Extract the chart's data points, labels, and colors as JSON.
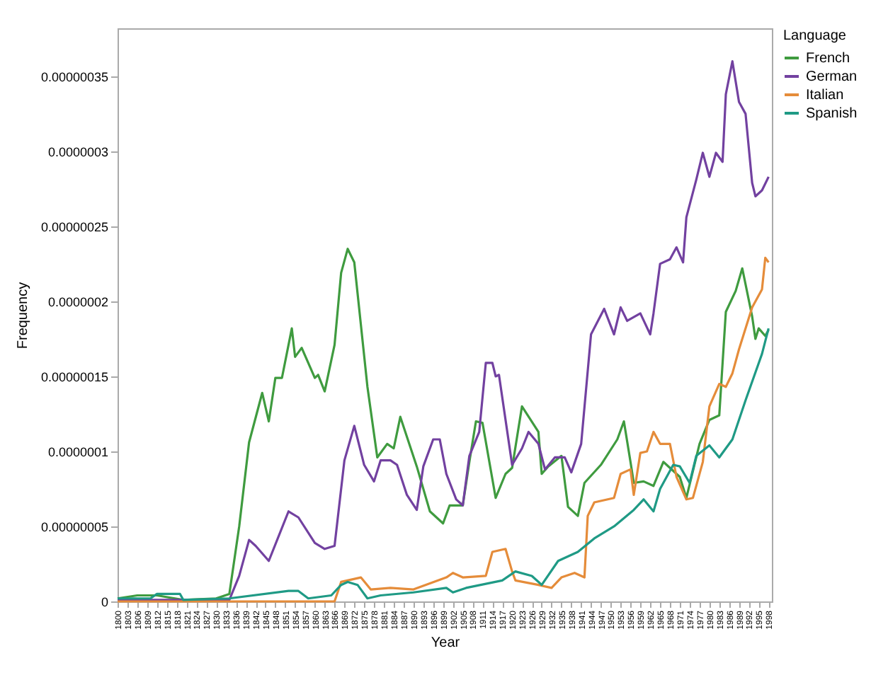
{
  "chart_data": {
    "type": "line",
    "xlabel": "Year",
    "ylabel": "Frequency",
    "legend_title": "Language",
    "legend": "right",
    "grid": false,
    "xlim": [
      1800,
      1999
    ],
    "xticks": [
      1800,
      1803,
      1806,
      1809,
      1812,
      1815,
      1818,
      1821,
      1824,
      1827,
      1830,
      1833,
      1836,
      1839,
      1842,
      1845,
      1848,
      1851,
      1854,
      1857,
      1860,
      1863,
      1866,
      1869,
      1872,
      1875,
      1878,
      1881,
      1884,
      1887,
      1890,
      1893,
      1896,
      1899,
      1902,
      1905,
      1908,
      1911,
      1914,
      1917,
      1920,
      1923,
      1926,
      1929,
      1932,
      1935,
      1938,
      1941,
      1944,
      1947,
      1950,
      1953,
      1956,
      1959,
      1962,
      1965,
      1968,
      1971,
      1974,
      1977,
      1980,
      1983,
      1986,
      1989,
      1992,
      1995,
      1998
    ],
    "ylim": [
      0,
      3.82e-07
    ],
    "yticks": [
      0,
      {
        "value": 5e-08,
        "label": "0.00000005"
      },
      {
        "value": 1e-07,
        "label": "0.0000001"
      },
      {
        "value": 1.5e-07,
        "label": "0.00000015"
      },
      {
        "value": 2e-07,
        "label": "0.0000002"
      },
      {
        "value": 2.5e-07,
        "label": "0.00000025"
      },
      {
        "value": 3e-07,
        "label": "0.0000003"
      },
      {
        "value": 3.5e-07,
        "label": "0.00000035"
      }
    ],
    "series": [
      {
        "name": "French",
        "color": "#3f9b3f",
        "x": [
          1800,
          1806,
          1812,
          1820,
          1830,
          1834,
          1837,
          1840,
          1844,
          1846,
          1848,
          1850,
          1853,
          1854,
          1856,
          1860,
          1861,
          1863,
          1866,
          1868,
          1870,
          1872,
          1876,
          1879,
          1882,
          1884,
          1886,
          1891,
          1895,
          1899,
          1901,
          1905,
          1907,
          1909,
          1911,
          1915,
          1918,
          1920,
          1923,
          1928,
          1929,
          1931,
          1935,
          1937,
          1940,
          1942,
          1947,
          1952,
          1954,
          1956,
          1957,
          1960,
          1963,
          1966,
          1971,
          1973,
          1977,
          1980,
          1983,
          1985,
          1988,
          1990,
          1993,
          1994,
          1995,
          1997,
          1998
        ],
        "values": [
          2e-09,
          4e-09,
          4e-09,
          1e-09,
          2e-09,
          5e-09,
          5e-08,
          1.06e-07,
          1.39e-07,
          1.2e-07,
          1.49e-07,
          1.49e-07,
          1.82e-07,
          1.63e-07,
          1.69e-07,
          1.49e-07,
          1.51e-07,
          1.4e-07,
          1.71e-07,
          2.19e-07,
          2.35e-07,
          2.26e-07,
          1.43e-07,
          9.6e-08,
          1.05e-07,
          1.02e-07,
          1.23e-07,
          9e-08,
          6e-08,
          5.2e-08,
          6.4e-08,
          6.4e-08,
          9.3e-08,
          1.2e-07,
          1.19e-07,
          6.9e-08,
          8.5e-08,
          8.9e-08,
          1.3e-07,
          1.13e-07,
          8.5e-08,
          9e-08,
          9.7e-08,
          6.3e-08,
          5.7e-08,
          7.9e-08,
          9.1e-08,
          1.08e-07,
          1.2e-07,
          9.3e-08,
          7.9e-08,
          8e-08,
          7.7e-08,
          9.3e-08,
          8.3e-08,
          6.9e-08,
          1.05e-07,
          1.21e-07,
          1.24e-07,
          1.93e-07,
          2.07e-07,
          2.22e-07,
          1.9e-07,
          1.75e-07,
          1.82e-07,
          1.77e-07,
          1.81e-07
        ]
      },
      {
        "name": "German",
        "color": "#7241a0",
        "x": [
          1800,
          1834,
          1837,
          1840,
          1842,
          1846,
          1852,
          1855,
          1860,
          1863,
          1866,
          1869,
          1872,
          1875,
          1878,
          1880,
          1883,
          1885,
          1888,
          1891,
          1893,
          1896,
          1898,
          1900,
          1903,
          1905,
          1907,
          1910,
          1912,
          1914,
          1915,
          1916,
          1920,
          1923,
          1925,
          1928,
          1930,
          1933,
          1936,
          1938,
          1941,
          1944,
          1948,
          1951,
          1953,
          1955,
          1959,
          1962,
          1963,
          1965,
          1968,
          1970,
          1972,
          1973,
          1976,
          1978,
          1980,
          1982,
          1984,
          1985,
          1987,
          1989,
          1991,
          1993,
          1994,
          1996,
          1998
        ],
        "values": [
          1e-09,
          1e-09,
          1.7e-08,
          4.1e-08,
          3.7e-08,
          2.7e-08,
          6e-08,
          5.6e-08,
          3.9e-08,
          3.5e-08,
          3.7e-08,
          9.4e-08,
          1.17e-07,
          9.1e-08,
          8e-08,
          9.4e-08,
          9.4e-08,
          9.1e-08,
          7.1e-08,
          6.1e-08,
          9e-08,
          1.08e-07,
          1.08e-07,
          8.5e-08,
          6.8e-08,
          6.4e-08,
          9.7e-08,
          1.13e-07,
          1.59e-07,
          1.59e-07,
          1.5e-07,
          1.51e-07,
          9.1e-08,
          1.02e-07,
          1.13e-07,
          1.05e-07,
          8.8e-08,
          9.6e-08,
          9.6e-08,
          8.6e-08,
          1.05e-07,
          1.78e-07,
          1.95e-07,
          1.78e-07,
          1.96e-07,
          1.87e-07,
          1.92e-07,
          1.78e-07,
          1.92e-07,
          2.25e-07,
          2.28e-07,
          2.36e-07,
          2.26e-07,
          2.56e-07,
          2.81e-07,
          2.99e-07,
          2.83e-07,
          2.99e-07,
          2.93e-07,
          3.38e-07,
          3.6e-07,
          3.33e-07,
          3.25e-07,
          2.79e-07,
          2.7e-07,
          2.74e-07,
          2.83e-07
        ]
      },
      {
        "name": "Italian",
        "color": "#e58c3a",
        "x": [
          1800,
          1866,
          1868,
          1874,
          1877,
          1883,
          1890,
          1900,
          1902,
          1905,
          1912,
          1914,
          1918,
          1920,
          1921,
          1928,
          1932,
          1935,
          1939,
          1942,
          1943,
          1945,
          1951,
          1953,
          1956,
          1957,
          1959,
          1961,
          1963,
          1965,
          1968,
          1970,
          1973,
          1975,
          1978,
          1980,
          1983,
          1985,
          1987,
          1989,
          1993,
          1996,
          1997,
          1998
        ],
        "values": [
          0,
          0,
          1.3e-08,
          1.6e-08,
          8e-09,
          9e-09,
          8e-09,
          1.6e-08,
          1.9e-08,
          1.6e-08,
          1.7e-08,
          3.3e-08,
          3.5e-08,
          2e-08,
          1.4e-08,
          1.1e-08,
          9e-09,
          1.6e-08,
          1.9e-08,
          1.6e-08,
          5.7e-08,
          6.6e-08,
          6.9e-08,
          8.5e-08,
          8.8e-08,
          7.1e-08,
          9.9e-08,
          1e-07,
          1.13e-07,
          1.05e-07,
          1.05e-07,
          8.3e-08,
          6.8e-08,
          6.9e-08,
          9.3e-08,
          1.3e-07,
          1.45e-07,
          1.43e-07,
          1.52e-07,
          1.68e-07,
          1.96e-07,
          2.08e-07,
          2.29e-07,
          2.26e-07
        ]
      },
      {
        "name": "Spanish",
        "color": "#1f9a85",
        "x": [
          1800,
          1810,
          1812,
          1819,
          1820,
          1834,
          1852,
          1855,
          1858,
          1865,
          1868,
          1870,
          1873,
          1876,
          1880,
          1890,
          1900,
          1902,
          1906,
          1917,
          1921,
          1926,
          1929,
          1934,
          1940,
          1945,
          1951,
          1957,
          1960,
          1963,
          1965,
          1969,
          1971,
          1974,
          1976,
          1980,
          1983,
          1987,
          1991,
          1996,
          1998
        ],
        "values": [
          2e-09,
          2e-09,
          5e-09,
          5e-09,
          1e-09,
          2e-09,
          7e-09,
          7e-09,
          2e-09,
          4e-09,
          1.1e-08,
          1.3e-08,
          1.1e-08,
          2e-09,
          4e-09,
          6e-09,
          9e-09,
          6e-09,
          9e-09,
          1.4e-08,
          2e-08,
          1.7e-08,
          1.1e-08,
          2.7e-08,
          3.3e-08,
          4.2e-08,
          5e-08,
          6.1e-08,
          6.8e-08,
          6e-08,
          7.5e-08,
          9.1e-08,
          9e-08,
          7.9e-08,
          9.7e-08,
          1.04e-07,
          9.6e-08,
          1.08e-07,
          1.34e-07,
          1.65e-07,
          1.82e-07
        ]
      }
    ]
  }
}
